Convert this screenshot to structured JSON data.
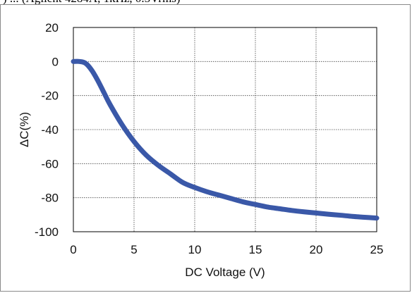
{
  "caption": ") ... (Agilent 4284A, 1kHz, 0.5Vrms)",
  "chart_data": {
    "type": "line",
    "title": "",
    "xlabel": "DC Voltage (V)",
    "ylabel": "ΔC(%)",
    "xlim": [
      0,
      25
    ],
    "ylim": [
      -100,
      20
    ],
    "xticks": [
      0,
      5,
      10,
      15,
      20,
      25
    ],
    "yticks": [
      20,
      0,
      -20,
      -40,
      -60,
      -80,
      -100
    ],
    "grid": true,
    "legend": "none",
    "series": [
      {
        "color": "#3a58a8",
        "x": [
          0,
          0.5,
          1,
          1.5,
          2,
          2.5,
          3,
          4,
          5,
          6,
          7,
          8,
          9,
          10,
          11,
          12,
          13,
          14,
          15,
          16,
          17,
          18,
          19,
          20,
          21,
          22,
          23,
          24,
          25
        ],
        "y": [
          0,
          0,
          -1,
          -5,
          -11,
          -18,
          -25,
          -37,
          -47,
          -55,
          -61,
          -66,
          -71,
          -74,
          -76.5,
          -78.5,
          -80.5,
          -82.5,
          -84,
          -85.5,
          -86.5,
          -87.5,
          -88.3,
          -89,
          -89.7,
          -90.3,
          -91,
          -91.5,
          -92
        ]
      }
    ]
  }
}
